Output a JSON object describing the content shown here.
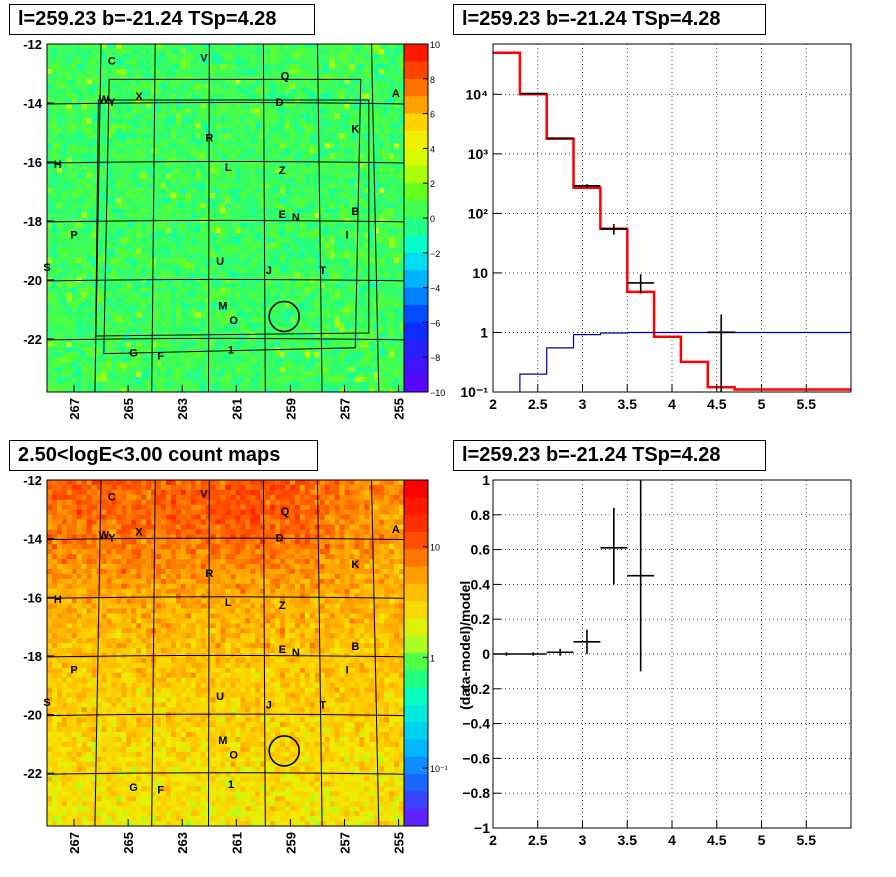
{
  "panels": {
    "tl_title": "l=259.23 b=-21.24 TSp=4.28",
    "tr_title": "l=259.23 b=-21.24 TSp=4.28",
    "bl_title": "2.50<logE<3.00 count maps",
    "br_title": "l=259.23 b=-21.24 TSp=4.28"
  },
  "chart_data": [
    {
      "id": "residual-map",
      "type": "heatmap",
      "title": "l=259.23 b=-21.24 TSp=4.28",
      "xlim": [
        268,
        254.8
      ],
      "ylim": [
        -23.8,
        -12
      ],
      "x_ticks": [
        "267",
        "265",
        "263",
        "261",
        "259",
        "257",
        "255"
      ],
      "x_tick_values": [
        267,
        265,
        263,
        261,
        259,
        257,
        255
      ],
      "y_ticks": [
        "-12",
        "-14",
        "-16",
        "-18",
        "-20",
        "-22"
      ],
      "y_tick_values": [
        -12,
        -14,
        -16,
        -18,
        -20,
        -22
      ],
      "colorbar": {
        "scale": "linear",
        "min": -10,
        "max": 10,
        "ticks": [
          "10",
          "8",
          "6",
          "4",
          "2",
          "0",
          "−2",
          "−4",
          "−6",
          "−8",
          "−10"
        ],
        "tick_values": [
          10,
          8,
          6,
          4,
          2,
          0,
          -2,
          -4,
          -6,
          -8,
          -10
        ],
        "colors": [
          "#ff0000",
          "#ff3300",
          "#ff6600",
          "#ff9900",
          "#ffcc00",
          "#ffff00",
          "#ccff00",
          "#99ff00",
          "#33ff33",
          "#00ff66",
          "#00ffaa",
          "#00ffdd",
          "#00eeff",
          "#00ccff",
          "#0099ff",
          "#0066ff",
          "#0033ff",
          "#0000ff",
          "#3300ff",
          "#6600ff",
          "#9900ff"
        ],
        "dominant_range": [
          -2,
          3
        ]
      },
      "labels": [
        {
          "text": "C",
          "l": 265.6,
          "b": -12.7
        },
        {
          "text": "V",
          "l": 262.2,
          "b": -12.6
        },
        {
          "text": "Q",
          "l": 259.2,
          "b": -13.2
        },
        {
          "text": "A",
          "l": 255.1,
          "b": -13.8
        },
        {
          "text": "W",
          "l": 265.9,
          "b": -14.0
        },
        {
          "text": "Y",
          "l": 265.6,
          "b": -14.1
        },
        {
          "text": "X",
          "l": 264.6,
          "b": -13.9
        },
        {
          "text": "D",
          "l": 259.4,
          "b": -14.1
        },
        {
          "text": "K",
          "l": 256.6,
          "b": -15.0
        },
        {
          "text": "R",
          "l": 262.0,
          "b": -15.3
        },
        {
          "text": "H",
          "l": 267.6,
          "b": -16.2
        },
        {
          "text": "L",
          "l": 261.3,
          "b": -16.3
        },
        {
          "text": "Z",
          "l": 259.3,
          "b": -16.4
        },
        {
          "text": "E",
          "l": 259.3,
          "b": -17.9
        },
        {
          "text": "N",
          "l": 258.8,
          "b": -18.0
        },
        {
          "text": "B",
          "l": 256.6,
          "b": -17.8
        },
        {
          "text": "P",
          "l": 267.0,
          "b": -18.6
        },
        {
          "text": "I",
          "l": 256.9,
          "b": -18.6
        },
        {
          "text": "S",
          "l": 268.0,
          "b": -19.7
        },
        {
          "text": "U",
          "l": 261.6,
          "b": -19.5
        },
        {
          "text": "J",
          "l": 259.8,
          "b": -19.8
        },
        {
          "text": "T",
          "l": 257.8,
          "b": -19.8
        },
        {
          "text": "M",
          "l": 261.5,
          "b": -21.0
        },
        {
          "text": "O",
          "l": 261.1,
          "b": -21.5
        },
        {
          "text": "1",
          "l": 261.2,
          "b": -22.5
        },
        {
          "text": "G",
          "l": 264.8,
          "b": -22.6
        },
        {
          "text": "F",
          "l": 263.8,
          "b": -22.7
        }
      ],
      "source_circle": {
        "l": 259.23,
        "b": -21.24,
        "r": 0.55
      }
    },
    {
      "id": "spectrum",
      "type": "line",
      "title": "l=259.23 b=-21.24 TSp=4.28",
      "xlabel": "",
      "ylabel": "",
      "xlim": [
        2,
        6
      ],
      "ylim": [
        0.1,
        70000
      ],
      "y_scale": "log",
      "x_ticks": [
        "2",
        "2.5",
        "3",
        "3.5",
        "4",
        "4.5",
        "5",
        "5.5"
      ],
      "x_tick_values": [
        2,
        2.5,
        3,
        3.5,
        4,
        4.5,
        5,
        5.5
      ],
      "y_ticks": [
        "10⁻¹",
        "1",
        "10",
        "10²",
        "10³",
        "10⁴"
      ],
      "y_tick_values": [
        0.1,
        1,
        10,
        100,
        1000,
        10000
      ],
      "grid": true,
      "series": [
        {
          "kind": "step-red",
          "color": "#ff0000",
          "edges": [
            2.0,
            2.3,
            2.6,
            2.9,
            3.2,
            3.5,
            3.8,
            4.1,
            4.4,
            4.7,
            6.0
          ],
          "values": [
            50000,
            10000,
            1800,
            270,
            55,
            4.8,
            0.85,
            0.32,
            0.12,
            0.11
          ]
        },
        {
          "kind": "step-blue",
          "color": "#0000aa",
          "edges": [
            2.3,
            2.6,
            2.9,
            3.2,
            3.5,
            3.8,
            4.1,
            4.4,
            4.7,
            6.0
          ],
          "values": [
            0.2,
            0.55,
            0.92,
            0.98,
            1.0,
            1.0,
            1.0,
            1.02,
            1.0
          ]
        },
        {
          "kind": "data-points",
          "color": "#000000",
          "x": [
            2.45,
            2.75,
            3.05,
            3.35,
            3.65,
            4.55
          ],
          "xerr": 0.15,
          "y": [
            10300,
            1830,
            290,
            55,
            6.8,
            1.0
          ],
          "ylo": [
            10100,
            1780,
            270,
            44,
            4.5,
            0.1
          ],
          "yhi": [
            10500,
            1880,
            310,
            66,
            9.5,
            2.0
          ]
        }
      ]
    },
    {
      "id": "count-map",
      "type": "heatmap",
      "title": "2.50<logE<3.00 count maps",
      "xlim": [
        268,
        254.8
      ],
      "ylim": [
        -23.8,
        -12
      ],
      "x_ticks": [
        "267",
        "265",
        "263",
        "261",
        "259",
        "257",
        "255"
      ],
      "x_tick_values": [
        267,
        265,
        263,
        261,
        259,
        257,
        255
      ],
      "y_ticks": [
        "-12",
        "-14",
        "-16",
        "-18",
        "-20",
        "-22"
      ],
      "y_tick_values": [
        -12,
        -14,
        -16,
        -18,
        -20,
        -22
      ],
      "colorbar": {
        "scale": "log",
        "min": 0.03,
        "max": 40,
        "ticks": [
          "10",
          "1",
          "10⁻¹"
        ],
        "tick_values": [
          10,
          1,
          0.1
        ]
      }
    },
    {
      "id": "residual-ratio",
      "type": "scatter",
      "title": "l=259.23 b=-21.24 TSp=4.28",
      "xlabel": "",
      "ylabel": "(data-model)/model",
      "xlim": [
        2,
        6
      ],
      "ylim": [
        -1,
        1
      ],
      "x_ticks": [
        "2",
        "2.5",
        "3",
        "3.5",
        "4",
        "4.5",
        "5",
        "5.5"
      ],
      "x_tick_values": [
        2,
        2.5,
        3,
        3.5,
        4,
        4.5,
        5,
        5.5
      ],
      "y_ticks": [
        "−1",
        "−0.8",
        "−0.6",
        "−0.4",
        "−0.2",
        "0",
        "0.2",
        "0.4",
        "0.6",
        "0.8",
        "1"
      ],
      "y_tick_values": [
        -1,
        -0.8,
        -0.6,
        -0.4,
        -0.2,
        0,
        0.2,
        0.4,
        0.6,
        0.8,
        1
      ],
      "grid": true,
      "points": {
        "x": [
          2.15,
          2.45,
          2.75,
          3.05,
          3.35,
          3.65
        ],
        "xerr": 0.15,
        "y": [
          0.0,
          0.0,
          0.01,
          0.07,
          0.61,
          0.45
        ],
        "ylo": [
          -0.01,
          -0.01,
          -0.01,
          0.0,
          0.4,
          -0.1
        ],
        "yhi": [
          0.01,
          0.01,
          0.03,
          0.14,
          0.84,
          1.0
        ]
      }
    }
  ]
}
